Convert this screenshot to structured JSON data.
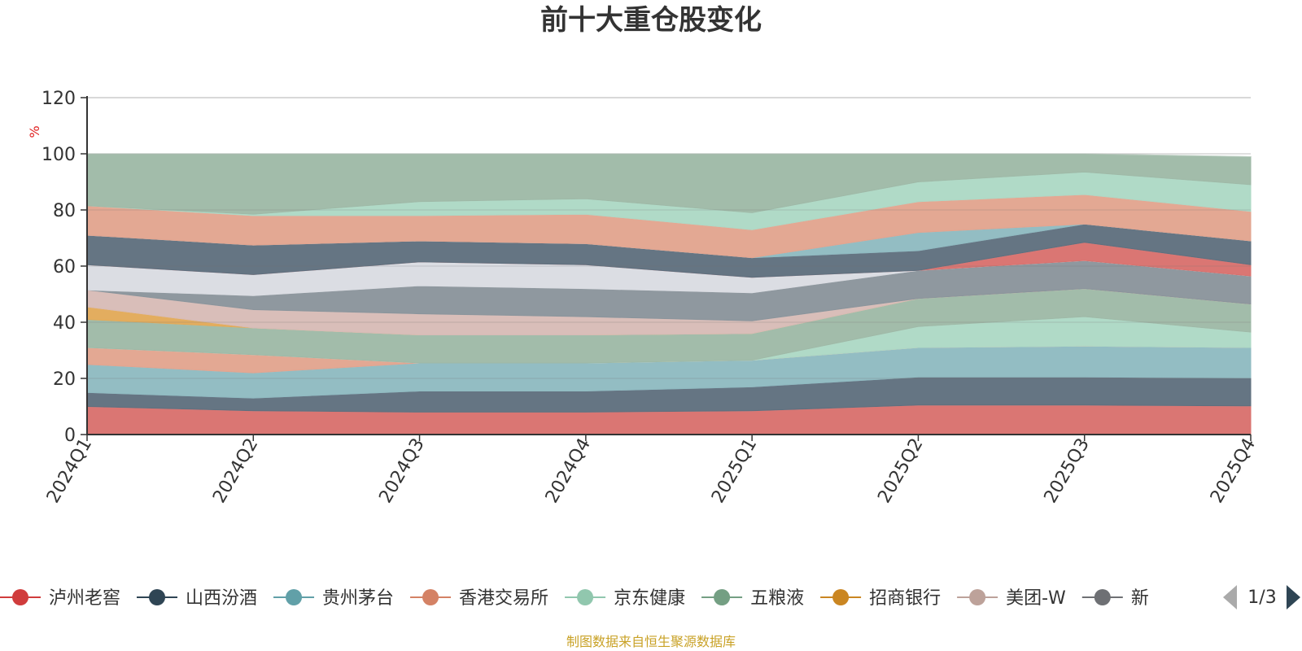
{
  "chart_data": {
    "type": "area",
    "stacked": true,
    "title": "前十大重仓股变化",
    "ylabel": "%",
    "ylim": [
      0,
      120
    ],
    "yticks": [
      "0",
      "20",
      "40",
      "60",
      "80",
      "100",
      "120"
    ],
    "categories": [
      "2024Q1",
      "2024Q2",
      "2024Q3",
      "2024Q4",
      "2025Q1",
      "2025Q2",
      "2025Q3",
      "2025Q4"
    ],
    "grid": true,
    "legend_position": "bottom",
    "series": [
      {
        "name": "泸州老窖",
        "color": "#d9706d",
        "values": [
          10,
          8.5,
          8,
          8,
          8.5,
          10.5,
          10.5,
          10.2
        ]
      },
      {
        "name": "山西汾酒",
        "color": "#5f6f7e",
        "values": [
          5,
          4.5,
          7.5,
          7.5,
          8.5,
          10,
          10,
          10
        ]
      },
      {
        "name": "贵州茅台",
        "color": "#8fbac1",
        "values": [
          10,
          9,
          10,
          10,
          9.5,
          10.5,
          11,
          10.8
        ]
      },
      {
        "name": "香港交易所",
        "color": "#e2a48f",
        "values": [
          6,
          6.5,
          0,
          0,
          0,
          0,
          0,
          0
        ]
      },
      {
        "name": "京东健康",
        "color": "#add8c5",
        "values": [
          0,
          0,
          0,
          0,
          0,
          7.5,
          10.5,
          5.5
        ]
      },
      {
        "name": "五粮液",
        "color": "#9eb9a7",
        "values": [
          10,
          9.5,
          10,
          10,
          9.5,
          10,
          10,
          10
        ]
      },
      {
        "name": "招商银行",
        "color": "#e2aa58",
        "values": [
          4.5,
          0,
          0,
          0,
          0,
          0,
          0,
          0
        ]
      },
      {
        "name": "美团-W",
        "color": "#d7bbb6",
        "values": [
          6,
          6.5,
          7.5,
          6.5,
          4.5,
          0,
          0,
          0
        ]
      },
      {
        "name": "新",
        "color": "#8a949b",
        "values": [
          0,
          5,
          10,
          10,
          10,
          10,
          10,
          10
        ]
      },
      {
        "name": "",
        "color": "#dadce2",
        "values": [
          9,
          7.5,
          8.5,
          8.5,
          5.5,
          0,
          0,
          0
        ]
      },
      {
        "name": "",
        "color": "#d9706d",
        "values": [
          0,
          0,
          0,
          0,
          0,
          0,
          6.5,
          4
        ]
      },
      {
        "name": "",
        "color": "#5f6f7e",
        "values": [
          10.5,
          10.5,
          7.5,
          7.5,
          7,
          7,
          6.5,
          8.5
        ]
      },
      {
        "name": "",
        "color": "#8fbac1",
        "values": [
          0,
          0,
          0,
          0,
          0,
          6.5,
          0,
          0
        ]
      },
      {
        "name": "",
        "color": "#e2a48f",
        "values": [
          10.5,
          10.5,
          9,
          10.5,
          10,
          11,
          10.5,
          10.5
        ]
      },
      {
        "name": "",
        "color": "#add8c5",
        "values": [
          0,
          0.5,
          5,
          5.5,
          6,
          7,
          8,
          9.5
        ]
      },
      {
        "name": "",
        "color": "#9eb9a7",
        "values": [
          18.5,
          21.5,
          17,
          16,
          21,
          10,
          6.5,
          10
        ]
      }
    ]
  },
  "legend": {
    "items": [
      {
        "label": "泸州老窖",
        "color": "#d03c3c"
      },
      {
        "label": "山西汾酒",
        "color": "#2f4554"
      },
      {
        "label": "贵州茅台",
        "color": "#61a0a8"
      },
      {
        "label": "香港交易所",
        "color": "#d48265"
      },
      {
        "label": "京东健康",
        "color": "#91c7ae"
      },
      {
        "label": "五粮液",
        "color": "#749f83"
      },
      {
        "label": "招商银行",
        "color": "#ca8622"
      },
      {
        "label": "美团-W",
        "color": "#bda29a"
      },
      {
        "label": "新",
        "color": "#6e7074"
      }
    ],
    "page": "1/3"
  },
  "source": "制图数据来自恒生聚源数据库"
}
